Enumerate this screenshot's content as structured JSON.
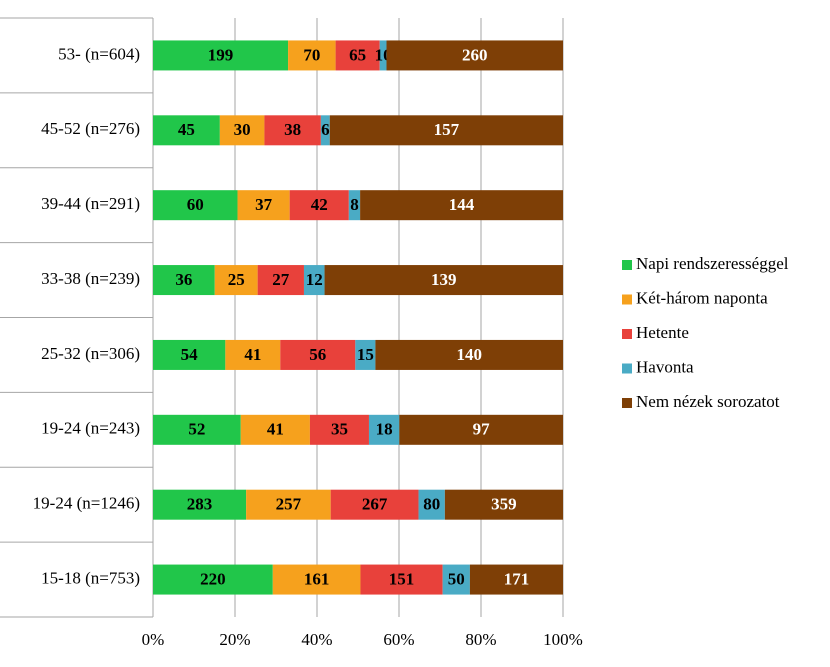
{
  "chart_data": {
    "type": "bar100",
    "orientation": "horizontal",
    "categories": [
      "53- (n=604)",
      "45-52 (n=276)",
      "39-44 (n=291)",
      "33-38 (n=239)",
      "25-32 (n=306)",
      "19-24 (n=243)",
      "19-24 (n=1246)",
      "15-18 (n=753)"
    ],
    "series": [
      {
        "name": "Napi rendszerességgel",
        "color": "#21c64a",
        "values": [
          199,
          45,
          60,
          36,
          54,
          52,
          283,
          220
        ]
      },
      {
        "name": "Két-három naponta",
        "color": "#f6a11d",
        "values": [
          70,
          30,
          37,
          25,
          41,
          41,
          257,
          161
        ]
      },
      {
        "name": "Hetente",
        "color": "#e8413b",
        "values": [
          65,
          38,
          42,
          27,
          56,
          35,
          267,
          151
        ]
      },
      {
        "name": "Havonta",
        "color": "#4aabc5",
        "values": [
          10,
          6,
          8,
          12,
          15,
          18,
          80,
          50
        ]
      },
      {
        "name": "Nem nézek sorozatot",
        "color": "#7e3f06",
        "values": [
          260,
          157,
          144,
          139,
          140,
          97,
          359,
          171
        ]
      }
    ],
    "xlim": [
      0,
      100
    ],
    "xticks": [
      {
        "value": 0,
        "label": "0%"
      },
      {
        "value": 20,
        "label": "20%"
      },
      {
        "value": 40,
        "label": "40%"
      },
      {
        "value": 60,
        "label": "60%"
      },
      {
        "value": 80,
        "label": "80%"
      },
      {
        "value": 100,
        "label": "100%"
      }
    ],
    "grid": true,
    "legend": "right"
  }
}
